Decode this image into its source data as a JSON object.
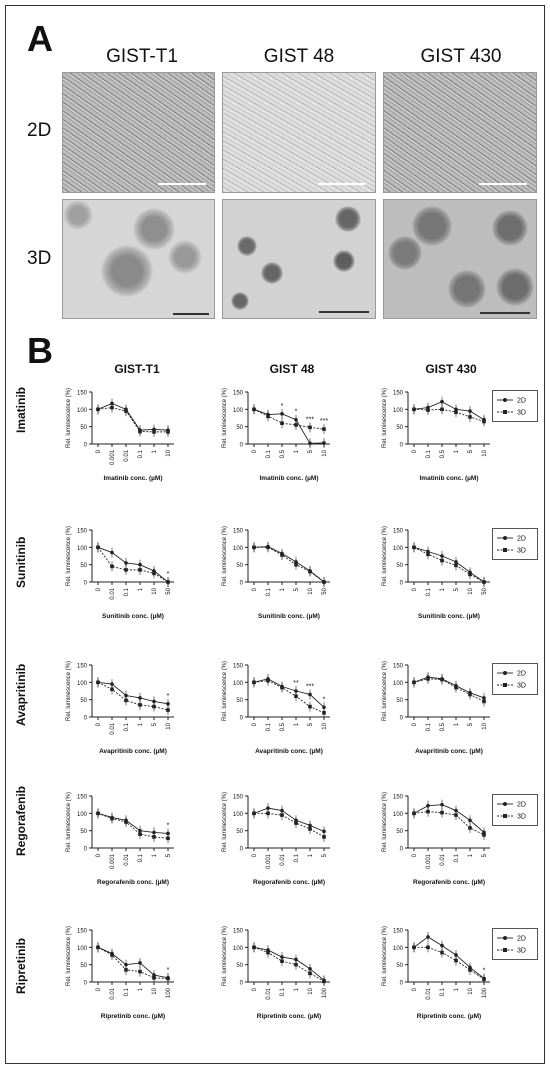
{
  "panel_labels": {
    "a": "A",
    "b": "B"
  },
  "panel_a": {
    "columns": [
      "GIST-T1",
      "GIST 48",
      "GIST 430"
    ],
    "rows": [
      "2D",
      "3D"
    ]
  },
  "panel_b": {
    "columns": [
      "GIST-T1",
      "GIST 48",
      "GIST 430"
    ],
    "drugs": [
      "Imatinib",
      "Sunitinib",
      "Avapritinib",
      "Regorafenib",
      "Ripretinib"
    ]
  },
  "legend": {
    "items": [
      "2D",
      "3D"
    ]
  },
  "colors": {
    "line": "#222222",
    "frame": "#333333"
  },
  "chart_data": [
    {
      "type": "line",
      "title": "GIST-T1",
      "drug": "Imatinib",
      "ylabel": "Rel. luminescence (%)",
      "xlabel": "Imatinib conc. (µM)",
      "ylim": [
        0,
        150
      ],
      "yticks": [
        0,
        50,
        100,
        150
      ],
      "x": [
        "0",
        "0.001",
        "0.01",
        "0.1",
        "1",
        "10"
      ],
      "series": [
        {
          "name": "2D",
          "values": [
            100,
            117,
            100,
            40,
            42,
            40
          ]
        },
        {
          "name": "3D",
          "values": [
            100,
            105,
            95,
            36,
            35,
            35
          ]
        }
      ],
      "annotations": []
    },
    {
      "type": "line",
      "title": "GIST 48",
      "drug": "Imatinib",
      "ylabel": "Rel. luminescence (%)",
      "xlabel": "Imatinib conc. (µM)",
      "ylim": [
        0,
        150
      ],
      "yticks": [
        0,
        50,
        100,
        150
      ],
      "x": [
        "0",
        "0.1",
        "0.5",
        "1",
        "5",
        "10"
      ],
      "series": [
        {
          "name": "2D",
          "values": [
            100,
            85,
            87,
            70,
            2,
            3
          ]
        },
        {
          "name": "3D",
          "values": [
            100,
            80,
            60,
            55,
            48,
            43
          ]
        }
      ],
      "annotations": [
        "*",
        "*",
        "***",
        "***"
      ]
    },
    {
      "type": "line",
      "title": "GIST 430",
      "drug": "Imatinib",
      "ylabel": "Rel. luminescence (%)",
      "xlabel": "Imatinib conc. (µM)",
      "ylim": [
        0,
        150
      ],
      "yticks": [
        0,
        50,
        100,
        150
      ],
      "x": [
        "0",
        "0.1",
        "0.5",
        "1",
        "5",
        "10"
      ],
      "series": [
        {
          "name": "2D",
          "values": [
            100,
            105,
            122,
            100,
            95,
            70
          ]
        },
        {
          "name": "3D",
          "values": [
            100,
            98,
            100,
            92,
            78,
            65
          ]
        }
      ],
      "annotations": []
    },
    {
      "type": "line",
      "title": "GIST-T1",
      "drug": "Sunitinib",
      "ylabel": "Rel. luminescence (%)",
      "xlabel": "Sunitinib conc. (µM)",
      "ylim": [
        0,
        150
      ],
      "yticks": [
        0,
        50,
        100,
        150
      ],
      "x": [
        "0",
        "0.01",
        "0.1",
        "1",
        "10",
        "50"
      ],
      "series": [
        {
          "name": "2D",
          "values": [
            100,
            85,
            55,
            50,
            32,
            0
          ]
        },
        {
          "name": "3D",
          "values": [
            100,
            45,
            35,
            35,
            25,
            0
          ]
        }
      ],
      "annotations": [
        "*"
      ]
    },
    {
      "type": "line",
      "title": "GIST 48",
      "drug": "Sunitinib",
      "ylabel": "Rel. luminescence (%)",
      "xlabel": "Sunitinib conc. (µM)",
      "ylim": [
        0,
        150
      ],
      "yticks": [
        0,
        50,
        100,
        150
      ],
      "x": [
        "0",
        "0.1",
        "1",
        "5",
        "10",
        "50"
      ],
      "series": [
        {
          "name": "2D",
          "values": [
            100,
            102,
            82,
            58,
            32,
            0
          ]
        },
        {
          "name": "3D",
          "values": [
            100,
            100,
            78,
            50,
            30,
            0
          ]
        }
      ],
      "annotations": []
    },
    {
      "type": "line",
      "title": "GIST 430",
      "drug": "Sunitinib",
      "ylabel": "Rel. luminescence (%)",
      "xlabel": "Sunitinib conc. (µM)",
      "ylim": [
        0,
        150
      ],
      "yticks": [
        0,
        50,
        100,
        150
      ],
      "x": [
        "0",
        "0.1",
        "1",
        "5",
        "10",
        "50"
      ],
      "series": [
        {
          "name": "2D",
          "values": [
            100,
            88,
            75,
            58,
            28,
            0
          ]
        },
        {
          "name": "3D",
          "values": [
            100,
            80,
            62,
            48,
            22,
            0
          ]
        }
      ],
      "annotations": []
    },
    {
      "type": "line",
      "title": "GIST-T1",
      "drug": "Avapritinib",
      "ylabel": "Rel. luminescence (%)",
      "xlabel": "Avapritinib conc. (µM)",
      "ylim": [
        0,
        150
      ],
      "yticks": [
        0,
        50,
        100,
        150
      ],
      "x": [
        "0",
        "0.01",
        "0.1",
        "1",
        "5",
        "10"
      ],
      "series": [
        {
          "name": "2D",
          "values": [
            100,
            95,
            62,
            55,
            45,
            38
          ]
        },
        {
          "name": "3D",
          "values": [
            100,
            80,
            48,
            35,
            30,
            20
          ]
        }
      ],
      "annotations": [
        "*"
      ]
    },
    {
      "type": "line",
      "title": "GIST 48",
      "drug": "Avapritinib",
      "ylabel": "Rel. luminescence (%)",
      "xlabel": "Avapritinib conc. (µM)",
      "ylim": [
        0,
        150
      ],
      "yticks": [
        0,
        50,
        100,
        150
      ],
      "x": [
        "0",
        "0.1",
        "0.5",
        "1",
        "5",
        "10"
      ],
      "series": [
        {
          "name": "2D",
          "values": [
            100,
            110,
            88,
            75,
            65,
            28
          ]
        },
        {
          "name": "3D",
          "values": [
            100,
            105,
            85,
            60,
            30,
            12
          ]
        }
      ],
      "annotations": [
        "**",
        "***",
        "*"
      ]
    },
    {
      "type": "line",
      "title": "GIST 430",
      "drug": "Avapritinib",
      "ylabel": "Rel. luminescence (%)",
      "xlabel": "Avapritinib conc. (µM)",
      "ylim": [
        0,
        150
      ],
      "yticks": [
        0,
        50,
        100,
        150
      ],
      "x": [
        "0",
        "0.1",
        "0.5",
        "1",
        "5",
        "10"
      ],
      "series": [
        {
          "name": "2D",
          "values": [
            100,
            115,
            110,
            90,
            70,
            55
          ]
        },
        {
          "name": "3D",
          "values": [
            100,
            110,
            108,
            85,
            65,
            45
          ]
        }
      ],
      "annotations": []
    },
    {
      "type": "line",
      "title": "GIST-T1",
      "drug": "Regorafenib",
      "ylabel": "Rel. luminescence (%)",
      "xlabel": "Regorafenib conc. (µM)",
      "ylim": [
        0,
        150
      ],
      "yticks": [
        0,
        50,
        100,
        150
      ],
      "x": [
        "0",
        "0.001",
        "0.01",
        "0.1",
        "1",
        "5"
      ],
      "series": [
        {
          "name": "2D",
          "values": [
            100,
            88,
            80,
            50,
            45,
            42
          ]
        },
        {
          "name": "3D",
          "values": [
            100,
            85,
            75,
            40,
            32,
            28
          ]
        }
      ],
      "annotations": [
        "*"
      ]
    },
    {
      "type": "line",
      "title": "GIST 48",
      "drug": "Regorafenib",
      "ylabel": "Rel. luminescence (%)",
      "xlabel": "Regorafenib conc. (µM)",
      "ylim": [
        0,
        150
      ],
      "yticks": [
        0,
        50,
        100,
        150
      ],
      "x": [
        "0",
        "0.001",
        "0.01",
        "0.1",
        "1",
        "5"
      ],
      "series": [
        {
          "name": "2D",
          "values": [
            100,
            115,
            108,
            80,
            65,
            48
          ]
        },
        {
          "name": "3D",
          "values": [
            100,
            100,
            95,
            72,
            55,
            32
          ]
        }
      ],
      "annotations": []
    },
    {
      "type": "line",
      "title": "GIST 430",
      "drug": "Regorafenib",
      "ylabel": "Rel. luminescence (%)",
      "xlabel": "Regorafenib conc. (µM)",
      "ylim": [
        0,
        150
      ],
      "yticks": [
        0,
        50,
        100,
        150
      ],
      "x": [
        "0",
        "0.001",
        "0.01",
        "0.1",
        "1",
        "5"
      ],
      "series": [
        {
          "name": "2D",
          "values": [
            100,
            122,
            125,
            108,
            80,
            45
          ]
        },
        {
          "name": "3D",
          "values": [
            100,
            105,
            102,
            95,
            58,
            38
          ]
        }
      ],
      "annotations": []
    },
    {
      "type": "line",
      "title": "GIST-T1",
      "drug": "Ripretinib",
      "ylabel": "Rel. luminescence (%)",
      "xlabel": "Ripretinib conc. (µM)",
      "ylim": [
        0,
        150
      ],
      "yticks": [
        0,
        50,
        100,
        150
      ],
      "x": [
        "0",
        "0.01",
        "0.1",
        "1",
        "10",
        "100"
      ],
      "series": [
        {
          "name": "2D",
          "values": [
            100,
            82,
            50,
            55,
            20,
            12
          ]
        },
        {
          "name": "3D",
          "values": [
            100,
            78,
            35,
            30,
            12,
            10
          ]
        }
      ],
      "annotations": [
        "*"
      ]
    },
    {
      "type": "line",
      "title": "GIST 48",
      "drug": "Ripretinib",
      "ylabel": "Rel. luminescence (%)",
      "xlabel": "Ripretinib conc. (µM)",
      "ylim": [
        0,
        150
      ],
      "yticks": [
        0,
        50,
        100,
        150
      ],
      "x": [
        "0",
        "0.01",
        "0.1",
        "1",
        "10",
        "100"
      ],
      "series": [
        {
          "name": "2D",
          "values": [
            100,
            92,
            72,
            65,
            38,
            5
          ]
        },
        {
          "name": "3D",
          "values": [
            100,
            85,
            60,
            50,
            25,
            2
          ]
        }
      ],
      "annotations": []
    },
    {
      "type": "line",
      "title": "GIST 430",
      "drug": "Ripretinib",
      "ylabel": "Rel. luminescence (%)",
      "xlabel": "Ripretinib conc. (µM)",
      "ylim": [
        0,
        150
      ],
      "yticks": [
        0,
        50,
        100,
        150
      ],
      "x": [
        "0",
        "0.01",
        "0.1",
        "1",
        "10",
        "100"
      ],
      "series": [
        {
          "name": "2D",
          "values": [
            100,
            130,
            105,
            78,
            42,
            10
          ]
        },
        {
          "name": "3D",
          "values": [
            100,
            100,
            85,
            62,
            35,
            8
          ]
        }
      ],
      "annotations": [
        "*"
      ]
    }
  ]
}
